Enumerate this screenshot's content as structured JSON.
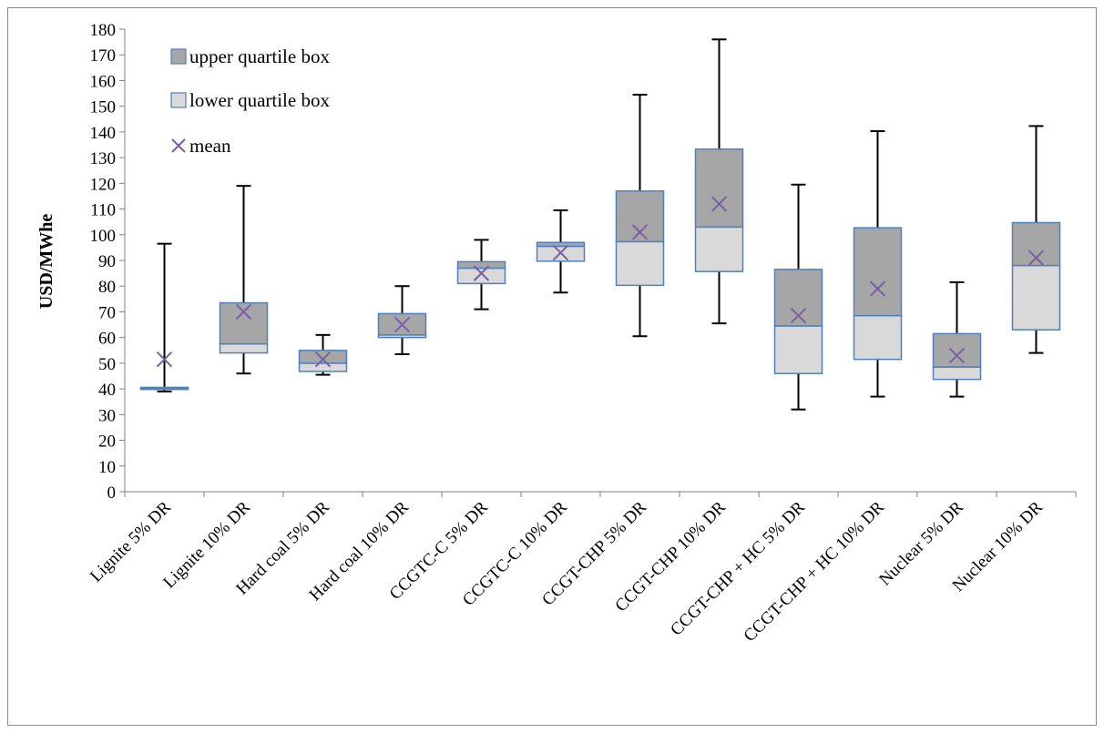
{
  "chart_data": {
    "type": "box",
    "ylabel": "USD/MWhe",
    "ylim": [
      0,
      180
    ],
    "yticks": [
      0,
      10,
      20,
      30,
      40,
      50,
      60,
      70,
      80,
      90,
      100,
      110,
      120,
      130,
      140,
      150,
      160,
      170,
      180
    ],
    "legend": {
      "placement": "top-left",
      "items": [
        {
          "label": "upper quartile box",
          "symbol": "box",
          "color": "#a6a6a6"
        },
        {
          "label": "lower quartile box",
          "symbol": "box",
          "color": "#d9d9d9"
        },
        {
          "label": "mean",
          "symbol": "x",
          "color": "#7a5fa6"
        }
      ]
    },
    "colors": {
      "upper_box": "#a6a6a6",
      "lower_box": "#d9d9d9",
      "box_border": "#4f81bd",
      "whisker": "#000000",
      "mean_marker": "#7a5fa6"
    },
    "categories": [
      "Lignite 5% DR",
      "Lignite 10% DR",
      "Hard coal 5% DR",
      "Hard coal 10% DR",
      "CCGTC-C 5% DR",
      "CCGTC-C 10% DR",
      "CCGT-CHP 5% DR",
      "CCGT-CHP 10% DR",
      "CCGT-CHP + HC 5% DR",
      "CCGT-CHP + HC 10% DR",
      "Nuclear 5% DR",
      "Nuclear 10% DR"
    ],
    "boxes": [
      {
        "min": 39,
        "q1": 39.8,
        "median": 40.2,
        "q3": 40.6,
        "max": 96.5,
        "mean": 51.5
      },
      {
        "min": 46,
        "q1": 54,
        "median": 57.5,
        "q3": 73.5,
        "max": 119,
        "mean": 70
      },
      {
        "min": 45.5,
        "q1": 46.8,
        "median": 50,
        "q3": 55,
        "max": 61,
        "mean": 51.5
      },
      {
        "min": 53.5,
        "q1": 60,
        "median": 61,
        "q3": 69.3,
        "max": 80,
        "mean": 65
      },
      {
        "min": 71,
        "q1": 81,
        "median": 87,
        "q3": 89.5,
        "max": 98,
        "mean": 85
      },
      {
        "min": 77.5,
        "q1": 89.7,
        "median": 95.5,
        "q3": 97,
        "max": 109.5,
        "mean": 93
      },
      {
        "min": 60.5,
        "q1": 80.3,
        "median": 97.3,
        "q3": 117,
        "max": 154.5,
        "mean": 101
      },
      {
        "min": 65.5,
        "q1": 85.7,
        "median": 103,
        "q3": 133.3,
        "max": 176,
        "mean": 112
      },
      {
        "min": 32,
        "q1": 46,
        "median": 64.5,
        "q3": 86.5,
        "max": 119.5,
        "mean": 68.5
      },
      {
        "min": 37,
        "q1": 51.5,
        "median": 68.5,
        "q3": 102.7,
        "max": 140.3,
        "mean": 79
      },
      {
        "min": 37,
        "q1": 43.7,
        "median": 48.5,
        "q3": 61.5,
        "max": 81.5,
        "mean": 53
      },
      {
        "min": 54,
        "q1": 63,
        "median": 88,
        "q3": 104.7,
        "max": 142.3,
        "mean": 91
      }
    ]
  }
}
